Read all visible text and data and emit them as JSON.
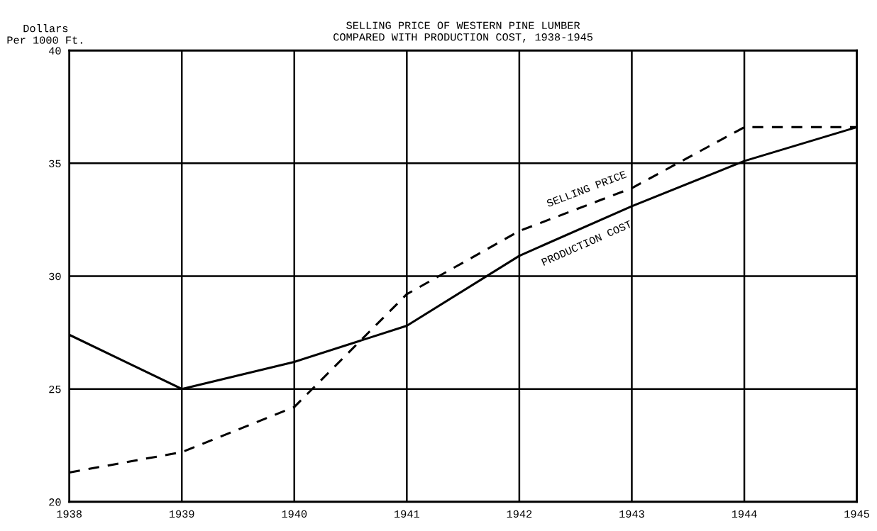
{
  "chart_data": {
    "type": "line",
    "title": "SELLING PRICE OF WESTERN PINE LUMBER\nCOMPARED WITH PRODUCTION COST, 1938-1945",
    "ylabel": "Dollars\nPer 1000 Ft.",
    "x": [
      1938,
      1939,
      1940,
      1941,
      1942,
      1943,
      1944,
      1945
    ],
    "series": [
      {
        "name": "SELLING PRICE",
        "color": "#000000",
        "line_style": "dashed",
        "values": [
          21.3,
          22.2,
          24.2,
          29.2,
          32.0,
          33.9,
          36.6,
          36.6
        ]
      },
      {
        "name": "PRODUCTION COST",
        "color": "#000000",
        "line_style": "solid",
        "values": [
          27.4,
          25.0,
          26.2,
          27.8,
          30.9,
          33.1,
          35.1,
          36.6
        ]
      }
    ],
    "xlim": [
      1938,
      1945
    ],
    "xticks": [
      1938,
      1939,
      1940,
      1941,
      1942,
      1943,
      1944,
      1945
    ],
    "ylim": [
      20,
      40
    ],
    "yticks": [
      20,
      25,
      30,
      35,
      40
    ],
    "grid": true,
    "marker": "none",
    "legend": false
  }
}
